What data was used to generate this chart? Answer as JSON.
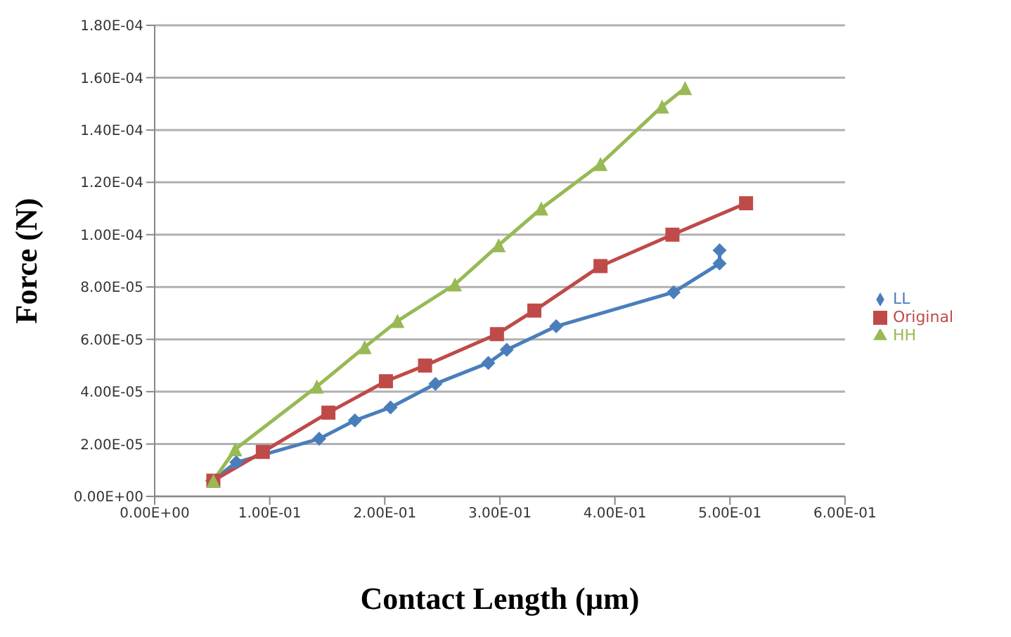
{
  "chart_data": {
    "type": "line",
    "xlabel": "Contact Length (µm)",
    "ylabel": "Force (N)",
    "xlim": [
      0,
      0.6
    ],
    "xticks": [
      {
        "value": 0,
        "label": "0.00E+00"
      },
      {
        "value": 0.1,
        "label": "1.00E-01"
      },
      {
        "value": 0.2,
        "label": "2.00E-01"
      },
      {
        "value": 0.3,
        "label": "3.00E-01"
      },
      {
        "value": 0.4,
        "label": "4.00E-01"
      },
      {
        "value": 0.5,
        "label": "5.00E-01"
      },
      {
        "value": 0.6,
        "label": "6.00E-01"
      }
    ],
    "ylim": [
      0,
      0.00018
    ],
    "yticks": [
      {
        "value": 0,
        "label": "0.00E+00"
      },
      {
        "value": 2e-05,
        "label": "2.00E-05"
      },
      {
        "value": 4e-05,
        "label": "4.00E-05"
      },
      {
        "value": 6e-05,
        "label": "6.00E-05"
      },
      {
        "value": 8e-05,
        "label": "8.00E-05"
      },
      {
        "value": 0.0001,
        "label": "1.00E-04"
      },
      {
        "value": 0.00012,
        "label": "1.20E-04"
      },
      {
        "value": 0.00014,
        "label": "1.40E-04"
      },
      {
        "value": 0.00016,
        "label": "1.60E-04"
      },
      {
        "value": 0.00018,
        "label": "1.80E-04"
      }
    ],
    "grid": "y",
    "legend": "right",
    "series": [
      {
        "name": "LL",
        "color": "#4a7ebb",
        "marker": "diamond",
        "x": [
          0.05,
          0.071,
          0.143,
          0.174,
          0.205,
          0.244,
          0.29,
          0.306,
          0.349,
          0.451,
          0.491,
          0.491
        ],
        "values": [
          6e-06,
          1.3e-05,
          2.2e-05,
          2.9e-05,
          3.4e-05,
          4.3e-05,
          5.1e-05,
          5.6e-05,
          6.5e-05,
          7.8e-05,
          8.9e-05,
          9.4e-05
        ]
      },
      {
        "name": "Original",
        "color": "#be4b48",
        "marker": "square",
        "x": [
          0.051,
          0.094,
          0.151,
          0.201,
          0.235,
          0.2975,
          0.33,
          0.3875,
          0.45,
          0.514
        ],
        "values": [
          6e-06,
          1.7e-05,
          3.2e-05,
          4.4e-05,
          5e-05,
          6.2e-05,
          7.1e-05,
          8.8e-05,
          0.0001,
          0.000112
        ]
      },
      {
        "name": "HH",
        "color": "#98b954",
        "marker": "triangle",
        "x": [
          0.051,
          0.07,
          0.141,
          0.1825,
          0.211,
          0.261,
          0.299,
          0.336,
          0.3875,
          0.441,
          0.461
        ],
        "values": [
          6e-06,
          1.8e-05,
          4.2e-05,
          5.7e-05,
          6.7e-05,
          8.1e-05,
          9.6e-05,
          0.00011,
          0.000127,
          0.000149,
          0.000156
        ]
      }
    ]
  }
}
